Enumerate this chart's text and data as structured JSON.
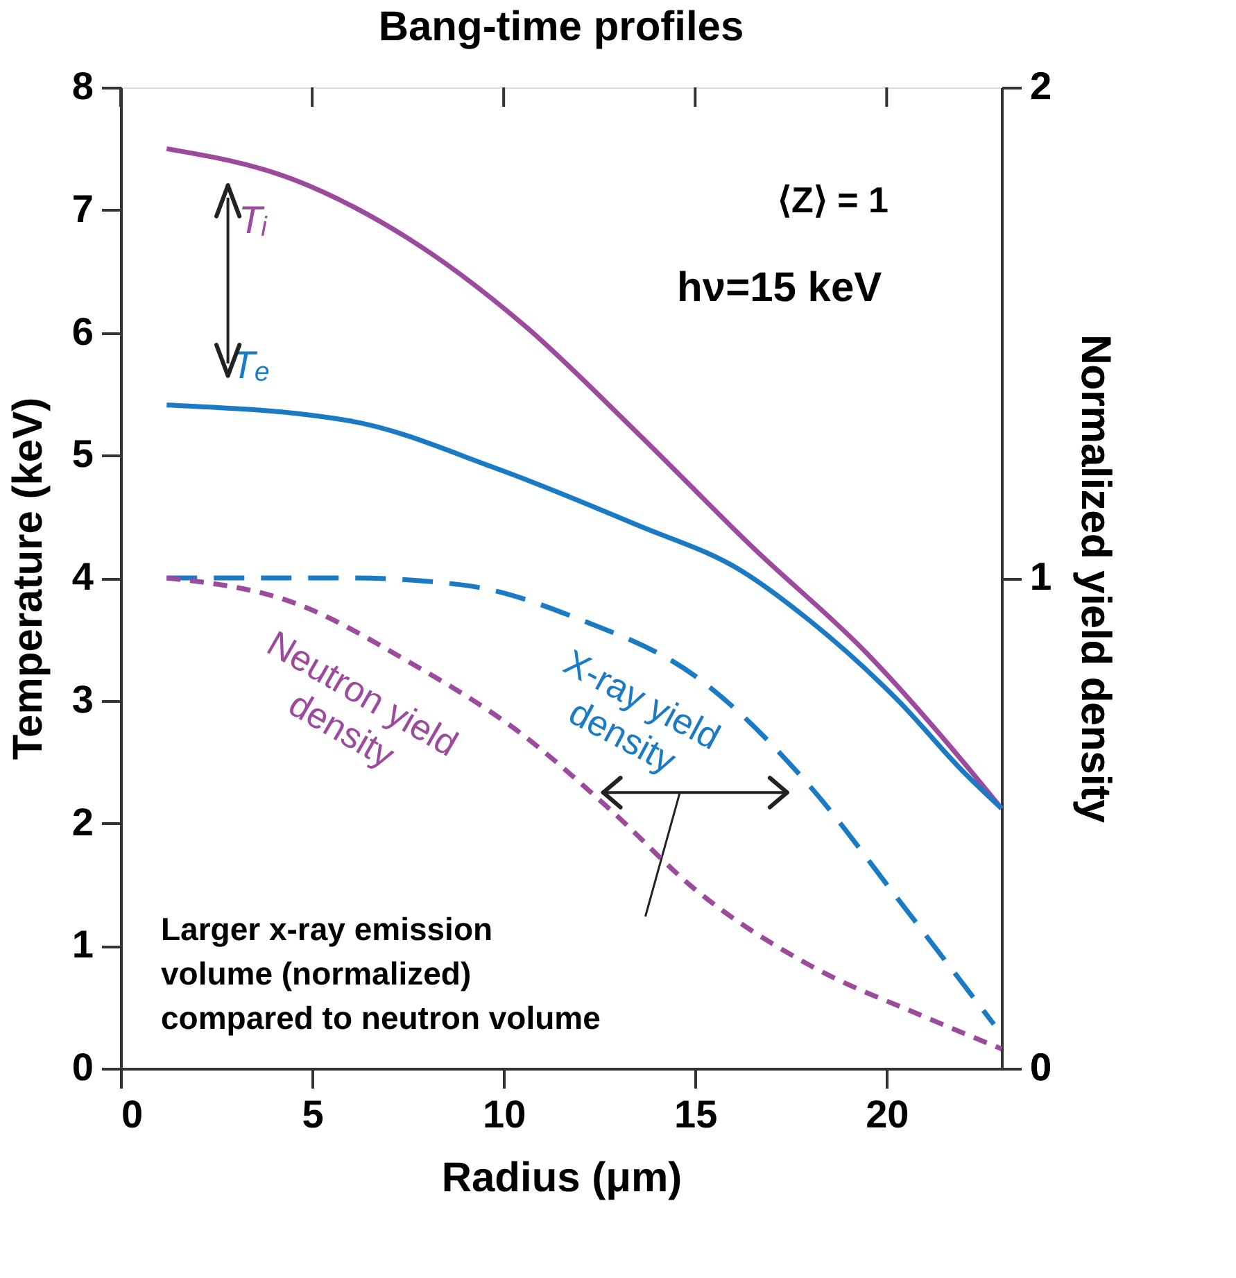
{
  "chart_data": {
    "type": "line",
    "title": "Bang-time profiles",
    "xlabel": "Radius (μm)",
    "ylabel": "Temperature (keV)",
    "y2label": "Normalized yield density",
    "xlim": [
      0,
      23
    ],
    "xticks": [
      0,
      5,
      10,
      15,
      20
    ],
    "ylim": [
      0,
      8
    ],
    "yticks": [
      0,
      1,
      2,
      3,
      4,
      5,
      6,
      7,
      8
    ],
    "y2lim": [
      0,
      2
    ],
    "y2ticks": [
      0,
      1,
      2
    ],
    "grid": false,
    "series": [
      {
        "name": "Tᵢ",
        "color": "#9b4a9e",
        "line_style": "solid",
        "x": [
          1.2,
          4.5,
          7.5,
          10.5,
          13.5,
          16.5,
          19.5,
          22,
          23
        ],
        "values": [
          7.5,
          7.25,
          6.77,
          6.07,
          5.18,
          4.25,
          3.38,
          2.5,
          2.12
        ]
      },
      {
        "name": "Tₑ",
        "color": "#1a7bc4",
        "line_style": "solid",
        "x": [
          1.2,
          6,
          9.75,
          13.5,
          16.2,
          18,
          20.3,
          22,
          23
        ],
        "values": [
          5.41,
          5.28,
          4.9,
          4.43,
          4.06,
          3.65,
          3.0,
          2.42,
          2.12
        ]
      },
      {
        "name": "X-ray yield density",
        "color": "#1a7bc4",
        "line_style": "dashed",
        "axis": "y2",
        "x": [
          1.2,
          6,
          9,
          12,
          15,
          18,
          20.25,
          22.8
        ],
        "values": [
          1.0,
          1.0,
          0.985,
          0.915,
          0.8,
          0.575,
          0.35,
          0.09
        ]
      },
      {
        "name": "Neutron yield density",
        "color": "#9b4a9e",
        "line_style": "dotted",
        "axis": "y2",
        "x": [
          1.2,
          4.5,
          7.5,
          10.5,
          12.75,
          15,
          18,
          21,
          23
        ],
        "values": [
          1.0,
          0.95,
          0.83,
          0.68,
          0.53,
          0.365,
          0.21,
          0.105,
          0.04
        ]
      }
    ],
    "annotations": [
      "⟨Z⟩ = 1",
      "hν=15 keV",
      "Larger x-ray emission volume (normalized) compared to neutron volume"
    ]
  }
}
